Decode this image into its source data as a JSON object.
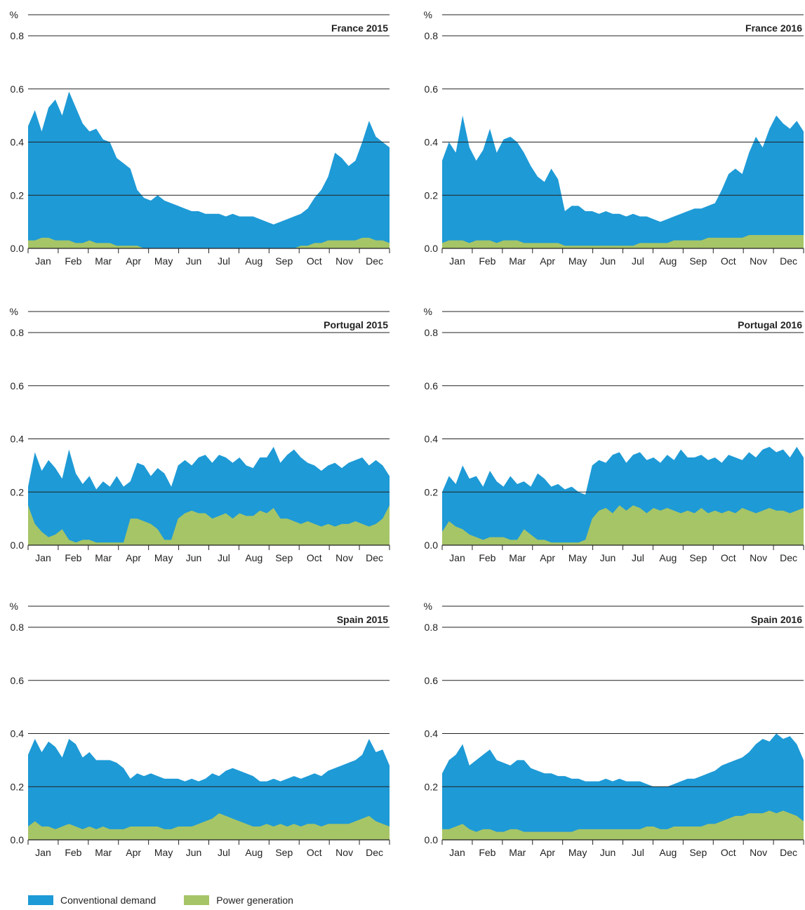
{
  "legend": {
    "conventional_label": "Conventional demand",
    "power_label": "Power generation"
  },
  "colors": {
    "conventional": "#1E9AD6",
    "power": "#A6C567",
    "grid": "#222222"
  },
  "chart_data": [
    {
      "type": "area",
      "title": "France 2015",
      "unit_label": "%",
      "months": [
        "Jan",
        "Feb",
        "Mar",
        "Apr",
        "May",
        "Jun",
        "Jul",
        "Aug",
        "Sep",
        "Oct",
        "Nov",
        "Dec"
      ],
      "yticks": [
        "0.0",
        "0.2",
        "0.4",
        "0.6",
        "0.8"
      ],
      "ylim": [
        0,
        0.8
      ],
      "x_unit": "week",
      "series": [
        {
          "name": "Conventional demand",
          "values": [
            0.46,
            0.52,
            0.44,
            0.53,
            0.56,
            0.5,
            0.59,
            0.53,
            0.47,
            0.44,
            0.45,
            0.41,
            0.4,
            0.34,
            0.32,
            0.3,
            0.22,
            0.19,
            0.18,
            0.2,
            0.18,
            0.17,
            0.16,
            0.15,
            0.14,
            0.14,
            0.13,
            0.13,
            0.13,
            0.12,
            0.13,
            0.12,
            0.12,
            0.12,
            0.11,
            0.1,
            0.09,
            0.1,
            0.11,
            0.12,
            0.13,
            0.15,
            0.19,
            0.22,
            0.27,
            0.36,
            0.34,
            0.31,
            0.33,
            0.4,
            0.48,
            0.42,
            0.4,
            0.38
          ]
        },
        {
          "name": "Power generation",
          "values": [
            0.03,
            0.03,
            0.04,
            0.04,
            0.03,
            0.03,
            0.03,
            0.02,
            0.02,
            0.03,
            0.02,
            0.02,
            0.02,
            0.01,
            0.01,
            0.01,
            0.01,
            0.0,
            0.0,
            0.0,
            0.0,
            0.0,
            0.0,
            0.0,
            0.0,
            0.0,
            0.0,
            0.0,
            0.0,
            0.0,
            0.0,
            0.0,
            0.0,
            0.0,
            0.0,
            0.0,
            0.0,
            0.0,
            0.0,
            0.0,
            0.01,
            0.01,
            0.02,
            0.02,
            0.03,
            0.03,
            0.03,
            0.03,
            0.03,
            0.04,
            0.04,
            0.03,
            0.03,
            0.02
          ]
        }
      ]
    },
    {
      "type": "area",
      "title": "France 2016",
      "unit_label": "%",
      "months": [
        "Jan",
        "Feb",
        "Mar",
        "Apr",
        "May",
        "Jun",
        "Jul",
        "Aug",
        "Sep",
        "Oct",
        "Nov",
        "Dec"
      ],
      "yticks": [
        "0.0",
        "0.2",
        "0.4",
        "0.6",
        "0.8"
      ],
      "ylim": [
        0,
        0.8
      ],
      "x_unit": "week",
      "series": [
        {
          "name": "Conventional demand",
          "values": [
            0.33,
            0.4,
            0.36,
            0.5,
            0.38,
            0.33,
            0.37,
            0.45,
            0.36,
            0.41,
            0.42,
            0.4,
            0.36,
            0.31,
            0.27,
            0.25,
            0.3,
            0.26,
            0.14,
            0.16,
            0.16,
            0.14,
            0.14,
            0.13,
            0.14,
            0.13,
            0.13,
            0.12,
            0.13,
            0.12,
            0.12,
            0.11,
            0.1,
            0.11,
            0.12,
            0.13,
            0.14,
            0.15,
            0.15,
            0.16,
            0.17,
            0.22,
            0.28,
            0.3,
            0.28,
            0.36,
            0.42,
            0.38,
            0.45,
            0.5,
            0.47,
            0.45,
            0.48,
            0.44
          ]
        },
        {
          "name": "Power generation",
          "values": [
            0.02,
            0.03,
            0.03,
            0.03,
            0.02,
            0.03,
            0.03,
            0.03,
            0.02,
            0.03,
            0.03,
            0.03,
            0.02,
            0.02,
            0.02,
            0.02,
            0.02,
            0.02,
            0.01,
            0.01,
            0.01,
            0.01,
            0.01,
            0.01,
            0.01,
            0.01,
            0.01,
            0.01,
            0.01,
            0.02,
            0.02,
            0.02,
            0.02,
            0.02,
            0.03,
            0.03,
            0.03,
            0.03,
            0.03,
            0.04,
            0.04,
            0.04,
            0.04,
            0.04,
            0.04,
            0.05,
            0.05,
            0.05,
            0.05,
            0.05,
            0.05,
            0.05,
            0.05,
            0.05
          ]
        }
      ]
    },
    {
      "type": "area",
      "title": "Portugal 2015",
      "unit_label": "%",
      "months": [
        "Jan",
        "Feb",
        "Mar",
        "Apr",
        "May",
        "Jun",
        "Jul",
        "Aug",
        "Sep",
        "Oct",
        "Nov",
        "Dec"
      ],
      "yticks": [
        "0.0",
        "0.2",
        "0.4",
        "0.6",
        "0.8"
      ],
      "ylim": [
        0,
        0.8
      ],
      "x_unit": "week",
      "series": [
        {
          "name": "Conventional demand",
          "values": [
            0.22,
            0.35,
            0.28,
            0.32,
            0.29,
            0.25,
            0.36,
            0.27,
            0.23,
            0.26,
            0.21,
            0.24,
            0.22,
            0.26,
            0.22,
            0.24,
            0.31,
            0.3,
            0.26,
            0.29,
            0.27,
            0.22,
            0.3,
            0.32,
            0.3,
            0.33,
            0.34,
            0.31,
            0.34,
            0.33,
            0.31,
            0.33,
            0.3,
            0.29,
            0.33,
            0.33,
            0.37,
            0.31,
            0.34,
            0.36,
            0.33,
            0.31,
            0.3,
            0.28,
            0.3,
            0.31,
            0.29,
            0.31,
            0.32,
            0.33,
            0.3,
            0.32,
            0.3,
            0.26
          ]
        },
        {
          "name": "Power generation",
          "values": [
            0.15,
            0.08,
            0.05,
            0.03,
            0.04,
            0.06,
            0.02,
            0.01,
            0.02,
            0.02,
            0.01,
            0.01,
            0.01,
            0.01,
            0.01,
            0.1,
            0.1,
            0.09,
            0.08,
            0.06,
            0.02,
            0.02,
            0.1,
            0.12,
            0.13,
            0.12,
            0.12,
            0.1,
            0.11,
            0.12,
            0.1,
            0.12,
            0.11,
            0.11,
            0.13,
            0.12,
            0.14,
            0.1,
            0.1,
            0.09,
            0.08,
            0.09,
            0.08,
            0.07,
            0.08,
            0.07,
            0.08,
            0.08,
            0.09,
            0.08,
            0.07,
            0.08,
            0.1,
            0.15
          ]
        }
      ]
    },
    {
      "type": "area",
      "title": "Portugal 2016",
      "unit_label": "%",
      "months": [
        "Jan",
        "Feb",
        "Mar",
        "Apr",
        "May",
        "Jun",
        "Jul",
        "Aug",
        "Sep",
        "Oct",
        "Nov",
        "Dec"
      ],
      "yticks": [
        "0.0",
        "0.2",
        "0.4",
        "0.6",
        "0.8"
      ],
      "ylim": [
        0,
        0.8
      ],
      "x_unit": "week",
      "series": [
        {
          "name": "Conventional demand",
          "values": [
            0.2,
            0.26,
            0.23,
            0.3,
            0.25,
            0.26,
            0.22,
            0.28,
            0.24,
            0.22,
            0.26,
            0.23,
            0.24,
            0.22,
            0.27,
            0.25,
            0.22,
            0.23,
            0.21,
            0.22,
            0.2,
            0.19,
            0.3,
            0.32,
            0.31,
            0.34,
            0.35,
            0.31,
            0.34,
            0.35,
            0.32,
            0.33,
            0.31,
            0.34,
            0.32,
            0.36,
            0.33,
            0.33,
            0.34,
            0.32,
            0.33,
            0.31,
            0.34,
            0.33,
            0.32,
            0.35,
            0.33,
            0.36,
            0.37,
            0.35,
            0.36,
            0.33,
            0.37,
            0.33
          ]
        },
        {
          "name": "Power generation",
          "values": [
            0.05,
            0.09,
            0.07,
            0.06,
            0.04,
            0.03,
            0.02,
            0.03,
            0.03,
            0.03,
            0.02,
            0.02,
            0.06,
            0.04,
            0.02,
            0.02,
            0.01,
            0.01,
            0.01,
            0.01,
            0.01,
            0.02,
            0.1,
            0.13,
            0.14,
            0.12,
            0.15,
            0.13,
            0.15,
            0.14,
            0.12,
            0.14,
            0.13,
            0.14,
            0.13,
            0.12,
            0.13,
            0.12,
            0.14,
            0.12,
            0.13,
            0.12,
            0.13,
            0.12,
            0.14,
            0.13,
            0.12,
            0.13,
            0.14,
            0.13,
            0.13,
            0.12,
            0.13,
            0.14
          ]
        }
      ]
    },
    {
      "type": "area",
      "title": "Spain 2015",
      "unit_label": "%",
      "months": [
        "Jan",
        "Feb",
        "Mar",
        "Apr",
        "May",
        "Jun",
        "Jul",
        "Aug",
        "Sep",
        "Oct",
        "Nov",
        "Dec"
      ],
      "yticks": [
        "0.0",
        "0.2",
        "0.4",
        "0.6",
        "0.8"
      ],
      "ylim": [
        0,
        0.8
      ],
      "x_unit": "week",
      "series": [
        {
          "name": "Conventional demand",
          "values": [
            0.32,
            0.38,
            0.33,
            0.37,
            0.35,
            0.31,
            0.38,
            0.36,
            0.31,
            0.33,
            0.3,
            0.3,
            0.3,
            0.29,
            0.27,
            0.23,
            0.25,
            0.24,
            0.25,
            0.24,
            0.23,
            0.23,
            0.23,
            0.22,
            0.23,
            0.22,
            0.23,
            0.25,
            0.24,
            0.26,
            0.27,
            0.26,
            0.25,
            0.24,
            0.22,
            0.22,
            0.23,
            0.22,
            0.23,
            0.24,
            0.23,
            0.24,
            0.25,
            0.24,
            0.26,
            0.27,
            0.28,
            0.29,
            0.3,
            0.32,
            0.38,
            0.33,
            0.34,
            0.28
          ]
        },
        {
          "name": "Power generation",
          "values": [
            0.05,
            0.07,
            0.05,
            0.05,
            0.04,
            0.05,
            0.06,
            0.05,
            0.04,
            0.05,
            0.04,
            0.05,
            0.04,
            0.04,
            0.04,
            0.05,
            0.05,
            0.05,
            0.05,
            0.05,
            0.04,
            0.04,
            0.05,
            0.05,
            0.05,
            0.06,
            0.07,
            0.08,
            0.1,
            0.09,
            0.08,
            0.07,
            0.06,
            0.05,
            0.05,
            0.06,
            0.05,
            0.06,
            0.05,
            0.06,
            0.05,
            0.06,
            0.06,
            0.05,
            0.06,
            0.06,
            0.06,
            0.06,
            0.07,
            0.08,
            0.09,
            0.07,
            0.06,
            0.05
          ]
        }
      ]
    },
    {
      "type": "area",
      "title": "Spain 2016",
      "unit_label": "%",
      "months": [
        "Jan",
        "Feb",
        "Mar",
        "Apr",
        "May",
        "Jun",
        "Jul",
        "Aug",
        "Sep",
        "Oct",
        "Nov",
        "Dec"
      ],
      "yticks": [
        "0.0",
        "0.2",
        "0.4",
        "0.6",
        "0.8"
      ],
      "ylim": [
        0,
        0.8
      ],
      "x_unit": "week",
      "series": [
        {
          "name": "Conventional demand",
          "values": [
            0.25,
            0.3,
            0.32,
            0.36,
            0.28,
            0.3,
            0.32,
            0.34,
            0.3,
            0.29,
            0.28,
            0.3,
            0.3,
            0.27,
            0.26,
            0.25,
            0.25,
            0.24,
            0.24,
            0.23,
            0.23,
            0.22,
            0.22,
            0.22,
            0.23,
            0.22,
            0.23,
            0.22,
            0.22,
            0.22,
            0.21,
            0.2,
            0.2,
            0.2,
            0.21,
            0.22,
            0.23,
            0.23,
            0.24,
            0.25,
            0.26,
            0.28,
            0.29,
            0.3,
            0.31,
            0.33,
            0.36,
            0.38,
            0.37,
            0.4,
            0.38,
            0.39,
            0.36,
            0.3
          ]
        },
        {
          "name": "Power generation",
          "values": [
            0.04,
            0.04,
            0.05,
            0.06,
            0.04,
            0.03,
            0.04,
            0.04,
            0.03,
            0.03,
            0.04,
            0.04,
            0.03,
            0.03,
            0.03,
            0.03,
            0.03,
            0.03,
            0.03,
            0.03,
            0.04,
            0.04,
            0.04,
            0.04,
            0.04,
            0.04,
            0.04,
            0.04,
            0.04,
            0.04,
            0.05,
            0.05,
            0.04,
            0.04,
            0.05,
            0.05,
            0.05,
            0.05,
            0.05,
            0.06,
            0.06,
            0.07,
            0.08,
            0.09,
            0.09,
            0.1,
            0.1,
            0.1,
            0.11,
            0.1,
            0.11,
            0.1,
            0.09,
            0.07
          ]
        }
      ]
    }
  ]
}
